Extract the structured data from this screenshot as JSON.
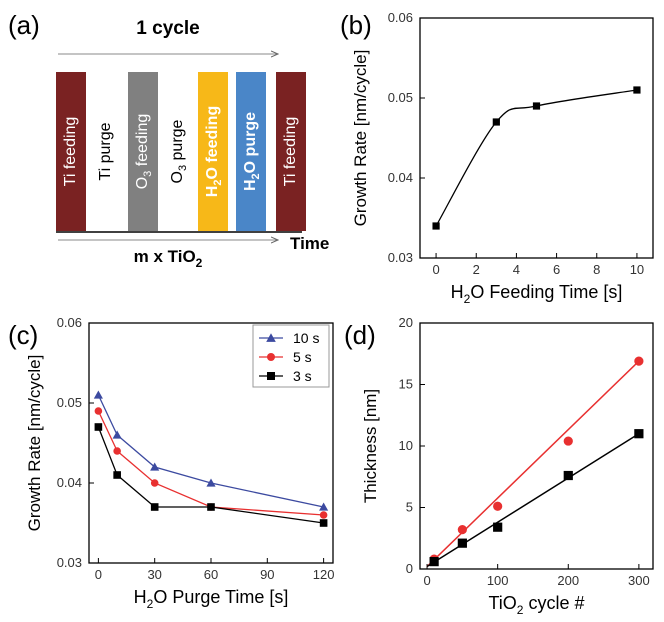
{
  "panels": {
    "a": {
      "letter": "(a)",
      "cycle_label": "1 cycle",
      "time_label": "Time",
      "repeat_label_pre": "m x TiO",
      "repeat_label_sub": "2",
      "steps": [
        {
          "pre": "Ti feeding",
          "sub": "",
          "post": "",
          "color": "#7a2222",
          "text_color": "#ffffff",
          "bold": false
        },
        {
          "pre": "Ti purge",
          "sub": "",
          "post": "",
          "color": "#ffffff",
          "text_color": "#000000",
          "bold": false
        },
        {
          "pre": "O",
          "sub": "3",
          "post": " feeding",
          "color": "#808080",
          "text_color": "#ffffff",
          "bold": false
        },
        {
          "pre": "O",
          "sub": "3",
          "post": " purge",
          "color": "#ffffff",
          "text_color": "#000000",
          "bold": false
        },
        {
          "pre": "H",
          "sub": "2",
          "post": "O feeding",
          "color": "#f7b818",
          "text_color": "#ffffff",
          "bold": true
        },
        {
          "pre": "H",
          "sub": "2",
          "post": "O purge",
          "color": "#4a86c8",
          "text_color": "#ffffff",
          "bold": true
        },
        {
          "pre": "Ti feeding",
          "sub": "",
          "post": "",
          "color": "#7a2222",
          "text_color": "#ffffff",
          "bold": false
        }
      ]
    },
    "b": {
      "letter": "(b)"
    },
    "c": {
      "letter": "(c)"
    },
    "d": {
      "letter": "(d)"
    }
  },
  "chart_data": [
    {
      "panel": "b",
      "type": "line",
      "xlabel_pre": "H",
      "xlabel_sub": "2",
      "xlabel_post": "O Feeding Time [s]",
      "ylabel": "Growth Rate [nm/cycle]",
      "xlim": [
        -0.8,
        10.8
      ],
      "ylim": [
        0.03,
        0.06
      ],
      "xticks": [
        0,
        2,
        4,
        6,
        8,
        10
      ],
      "yticks": [
        0.03,
        0.04,
        0.05,
        0.06
      ],
      "ytick_labels": [
        "0.03",
        "0.04",
        "0.05",
        "0.06"
      ],
      "grid": false,
      "series": [
        {
          "x": [
            0,
            3,
            5,
            10
          ],
          "y": [
            0.034,
            0.047,
            0.049,
            0.051
          ],
          "color": "#000000",
          "marker": "square"
        }
      ]
    },
    {
      "panel": "c",
      "type": "line",
      "xlabel_pre": "H",
      "xlabel_sub": "2",
      "xlabel_post": "O Purge Time [s]",
      "ylabel": "Growth Rate [nm/cycle]",
      "xlim": [
        -5,
        125
      ],
      "ylim": [
        0.03,
        0.06
      ],
      "xticks": [
        0,
        30,
        60,
        90,
        120
      ],
      "yticks": [
        0.03,
        0.04,
        0.05,
        0.06
      ],
      "ytick_labels": [
        "0.03",
        "0.04",
        "0.05",
        "0.06"
      ],
      "grid": false,
      "legend": "top-right",
      "series": [
        {
          "name": "10 s",
          "x": [
            0,
            10,
            30,
            60,
            120
          ],
          "y": [
            0.051,
            0.046,
            0.042,
            0.04,
            0.037
          ],
          "color": "#3c4aa0",
          "marker": "triangle"
        },
        {
          "name": "5 s",
          "x": [
            0,
            10,
            30,
            60,
            120
          ],
          "y": [
            0.049,
            0.044,
            0.04,
            0.037,
            0.036
          ],
          "color": "#e83030",
          "marker": "circle"
        },
        {
          "name": "3 s",
          "x": [
            0,
            10,
            30,
            60,
            120
          ],
          "y": [
            0.047,
            0.041,
            0.037,
            0.037,
            0.035
          ],
          "color": "#000000",
          "marker": "square"
        }
      ]
    },
    {
      "panel": "d",
      "type": "scatter",
      "xlabel_pre": "TiO",
      "xlabel_sub": "2",
      "xlabel_post": " cycle #",
      "ylabel": "Thickness [nm]",
      "xlim": [
        -10,
        320
      ],
      "ylim": [
        0,
        20
      ],
      "xticks": [
        0,
        100,
        200,
        300
      ],
      "yticks": [
        0,
        5,
        10,
        15,
        20
      ],
      "ytick_labels": [
        "0",
        "5",
        "10",
        "15",
        "20"
      ],
      "grid": false,
      "series": [
        {
          "x": [
            10,
            50,
            100,
            200,
            300
          ],
          "y": [
            0.8,
            3.2,
            5.1,
            10.4,
            16.9
          ],
          "color": "#e83030",
          "marker": "circle",
          "fit": {
            "x0": 0,
            "y0": 0.2,
            "x1": 300,
            "y1": 16.9
          }
        },
        {
          "x": [
            10,
            50,
            100,
            200,
            300
          ],
          "y": [
            0.6,
            2.1,
            3.4,
            7.6,
            11.0
          ],
          "color": "#000000",
          "marker": "square",
          "fit": {
            "x0": 0,
            "y0": 0.2,
            "x1": 300,
            "y1": 11.0
          }
        }
      ]
    }
  ]
}
